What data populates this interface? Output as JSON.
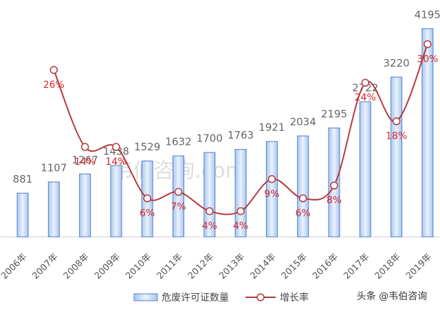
{
  "chart_data": {
    "type": "bar-line",
    "categories": [
      "2006年",
      "2007年",
      "2008年",
      "2009年",
      "2010年",
      "2011年",
      "2012年",
      "2013年",
      "2014年",
      "2015年",
      "2016年",
      "2017年",
      "2018年",
      "2019年"
    ],
    "series": [
      {
        "name": "危废许可证数量",
        "type": "bar",
        "color": "#4a7fd0",
        "values": [
          881,
          1107,
          1267,
          1438,
          1529,
          1632,
          1700,
          1763,
          1921,
          2034,
          2195,
          2722,
          3220,
          4195
        ]
      },
      {
        "name": "增长率",
        "type": "line",
        "axis": "y2",
        "color": "#b5373b",
        "values": [
          null,
          26,
          14,
          14,
          6,
          7,
          4,
          4,
          9,
          6,
          8,
          24,
          18,
          30
        ],
        "value_labels": [
          null,
          "26%",
          "14%",
          "14%",
          "6%",
          "7%",
          "4%",
          "4%",
          "9%",
          "6%",
          "8%",
          "24%",
          "18%",
          "30%"
        ]
      }
    ],
    "ylim": [
      0,
      4400
    ],
    "y2lim": [
      0,
      34
    ],
    "legend": "bottom"
  },
  "watermark": "韦伯咨询.com",
  "source": "头条 @韦伯咨询"
}
